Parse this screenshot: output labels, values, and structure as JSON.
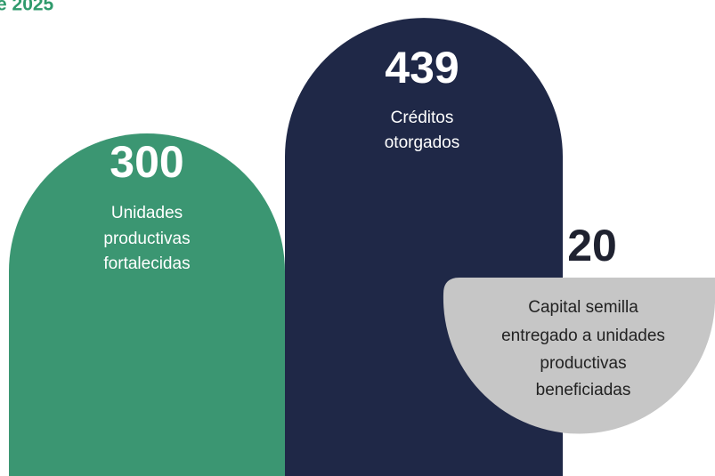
{
  "header": {
    "title": "e 2025"
  },
  "items": [
    {
      "number": "300",
      "lines": [
        "Unidades",
        "productivas",
        "fortalecidas"
      ]
    },
    {
      "number": "439",
      "lines": [
        "Créditos",
        "otorgados"
      ]
    },
    {
      "number": "20",
      "lines": [
        "Capital semilla",
        "entregado a unidades",
        "productivas",
        "beneficiadas"
      ]
    }
  ]
}
